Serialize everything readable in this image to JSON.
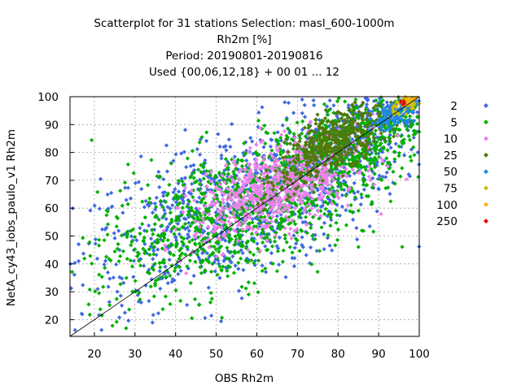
{
  "chart_data": {
    "type": "scatter",
    "title_lines": [
      "Scatterplot for   31 stations Selection: masl_600-1000m",
      "Rh2m [%]",
      "Period: 20190801-20190816",
      "Used {00,06,12,18} + 00 01 ... 12"
    ],
    "xlabel": "OBS Rh2m",
    "ylabel": "NetA_cy43_iobs_paulo_v1 Rh2m",
    "xlim": [
      14,
      100
    ],
    "ylim": [
      14,
      100
    ],
    "xticks": [
      "20",
      "30",
      "40",
      "50",
      "60",
      "70",
      "80",
      "90",
      "100"
    ],
    "yticks": [
      "20",
      "30",
      "40",
      "50",
      "60",
      "70",
      "80",
      "90",
      "100"
    ],
    "grid": true,
    "diagonal": true,
    "legend_position": "right",
    "series": [
      {
        "name": "2",
        "color": "#4169e1"
      },
      {
        "name": "5",
        "color": "#00b000"
      },
      {
        "name": "10",
        "color": "#ee82ee"
      },
      {
        "name": "25",
        "color": "#4f7a0a"
      },
      {
        "name": "50",
        "color": "#1e88e5"
      },
      {
        "name": "75",
        "color": "#c8c000"
      },
      {
        "name": "100",
        "color": "#ffb000"
      },
      {
        "name": "250",
        "color": "#ee0000"
      }
    ],
    "clusters": [
      {
        "series": 0,
        "cx": 55,
        "cy": 60,
        "sx": 20,
        "sy": 17,
        "n": 900
      },
      {
        "series": 0,
        "cx": 85,
        "cy": 85,
        "sx": 10,
        "sy": 10,
        "n": 350
      },
      {
        "series": 1,
        "cx": 55,
        "cy": 58,
        "sx": 18,
        "sy": 15,
        "n": 1000
      },
      {
        "series": 1,
        "cx": 82,
        "cy": 83,
        "sx": 10,
        "sy": 10,
        "n": 500
      },
      {
        "series": 2,
        "cx": 65,
        "cy": 67,
        "sx": 10,
        "sy": 9,
        "n": 750
      },
      {
        "series": 3,
        "cx": 80,
        "cy": 85,
        "sx": 6,
        "sy": 6,
        "n": 400
      },
      {
        "series": 3,
        "cx": 68,
        "cy": 70,
        "sx": 5,
        "sy": 5,
        "n": 60
      },
      {
        "series": 4,
        "cx": 94,
        "cy": 94,
        "sx": 3,
        "sy": 3,
        "n": 110
      },
      {
        "series": 5,
        "cx": 96,
        "cy": 97,
        "sx": 2,
        "sy": 2,
        "n": 40
      },
      {
        "series": 6,
        "cx": 97,
        "cy": 98,
        "sx": 1.5,
        "sy": 1.5,
        "n": 14
      },
      {
        "series": 7,
        "cx": 96,
        "cy": 98,
        "sx": 1.5,
        "sy": 1,
        "n": 4
      }
    ]
  }
}
